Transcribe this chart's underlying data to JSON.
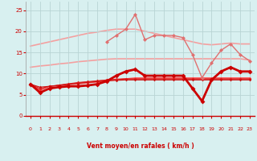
{
  "x": [
    0,
    1,
    2,
    3,
    4,
    5,
    6,
    7,
    8,
    9,
    10,
    11,
    12,
    13,
    14,
    15,
    16,
    17,
    18,
    19,
    20,
    21,
    22,
    23
  ],
  "lines": [
    {
      "y": [
        16.5,
        17.0,
        17.5,
        18.0,
        18.5,
        19.0,
        19.5,
        19.8,
        20.2,
        20.5,
        20.5,
        20.5,
        20.0,
        19.5,
        19.0,
        18.5,
        18.0,
        17.5,
        17.0,
        16.8,
        17.0,
        17.2,
        17.0,
        17.0
      ],
      "color": "#f4a0a0",
      "lw": 1.2,
      "marker": null,
      "zorder": 1
    },
    {
      "y": [
        11.5,
        11.8,
        12.0,
        12.3,
        12.5,
        12.8,
        13.0,
        13.2,
        13.4,
        13.5,
        13.5,
        13.5,
        13.5,
        13.5,
        13.5,
        13.5,
        13.5,
        13.5,
        13.5,
        13.5,
        13.5,
        13.5,
        13.5,
        13.2
      ],
      "color": "#f4a0a0",
      "lw": 1.2,
      "marker": null,
      "zorder": 1
    },
    {
      "y": [
        null,
        null,
        null,
        null,
        null,
        null,
        null,
        null,
        17.5,
        19.0,
        20.5,
        24.0,
        18.0,
        19.0,
        19.0,
        19.0,
        18.5,
        14.5,
        9.0,
        12.5,
        15.5,
        17.0,
        14.5,
        13.0
      ],
      "color": "#e07070",
      "lw": 1.0,
      "marker": "D",
      "ms": 2.5,
      "zorder": 3
    },
    {
      "y": [
        7.5,
        5.5,
        6.5,
        6.8,
        7.0,
        7.0,
        7.2,
        7.5,
        8.2,
        9.5,
        10.5,
        11.0,
        9.5,
        9.5,
        9.5,
        9.5,
        9.5,
        6.5,
        3.5,
        8.5,
        10.5,
        11.5,
        10.5,
        10.5
      ],
      "color": "#cc0000",
      "lw": 2.0,
      "marker": "D",
      "ms": 3,
      "zorder": 5
    },
    {
      "y": [
        7.5,
        6.0,
        7.0,
        7.2,
        7.4,
        7.5,
        7.8,
        8.0,
        8.3,
        8.5,
        8.8,
        9.0,
        9.0,
        9.0,
        9.0,
        9.0,
        9.0,
        9.0,
        9.0,
        9.0,
        9.0,
        9.0,
        9.0,
        9.0
      ],
      "color": "#ff5555",
      "lw": 0.8,
      "marker": "D",
      "ms": 1.8,
      "zorder": 2
    },
    {
      "y": [
        7.5,
        6.2,
        7.0,
        7.2,
        7.5,
        7.8,
        8.0,
        8.2,
        8.5,
        8.7,
        8.8,
        8.8,
        8.8,
        8.8,
        8.8,
        8.8,
        8.8,
        8.8,
        8.8,
        8.8,
        8.8,
        8.8,
        8.8,
        8.8
      ],
      "color": "#ee3333",
      "lw": 0.8,
      "marker": "D",
      "ms": 1.8,
      "zorder": 2
    },
    {
      "y": [
        7.5,
        6.5,
        7.0,
        7.3,
        7.6,
        7.9,
        8.1,
        8.3,
        8.5,
        8.6,
        8.7,
        8.7,
        8.7,
        8.7,
        8.7,
        8.7,
        8.7,
        8.7,
        8.7,
        8.7,
        8.7,
        8.7,
        8.7,
        8.7
      ],
      "color": "#dd2222",
      "lw": 0.8,
      "marker": "D",
      "ms": 1.8,
      "zorder": 2
    },
    {
      "y": [
        7.5,
        6.8,
        7.0,
        7.2,
        7.5,
        7.7,
        7.9,
        8.1,
        8.3,
        8.4,
        8.5,
        8.5,
        8.5,
        8.5,
        8.5,
        8.5,
        8.5,
        8.5,
        8.5,
        8.5,
        8.5,
        8.5,
        8.5,
        8.5
      ],
      "color": "#cc1111",
      "lw": 0.8,
      "marker": "D",
      "ms": 1.8,
      "zorder": 2
    }
  ],
  "bg_color": "#d8f0f0",
  "grid_color": "#b8d4d4",
  "xlabel": "Vent moyen/en rafales ( km/h )",
  "xlabel_color": "#cc0000",
  "tick_color": "#cc0000",
  "ylim": [
    0,
    27
  ],
  "xlim": [
    -0.5,
    23.5
  ],
  "yticks": [
    0,
    5,
    10,
    15,
    20,
    25
  ],
  "xticks": [
    0,
    1,
    2,
    3,
    4,
    5,
    6,
    7,
    8,
    9,
    10,
    11,
    12,
    13,
    14,
    15,
    16,
    17,
    18,
    19,
    20,
    21,
    22,
    23
  ],
  "arrow_chars": [
    "↙",
    "↙",
    "↘",
    "↓",
    "↙",
    "↙",
    "↙",
    "←",
    "↙",
    "←",
    "↙",
    "←",
    "←",
    "↙",
    "←",
    "↙",
    "↓",
    "↓",
    "↙",
    "↗",
    "↗",
    "→",
    "→",
    "→"
  ]
}
